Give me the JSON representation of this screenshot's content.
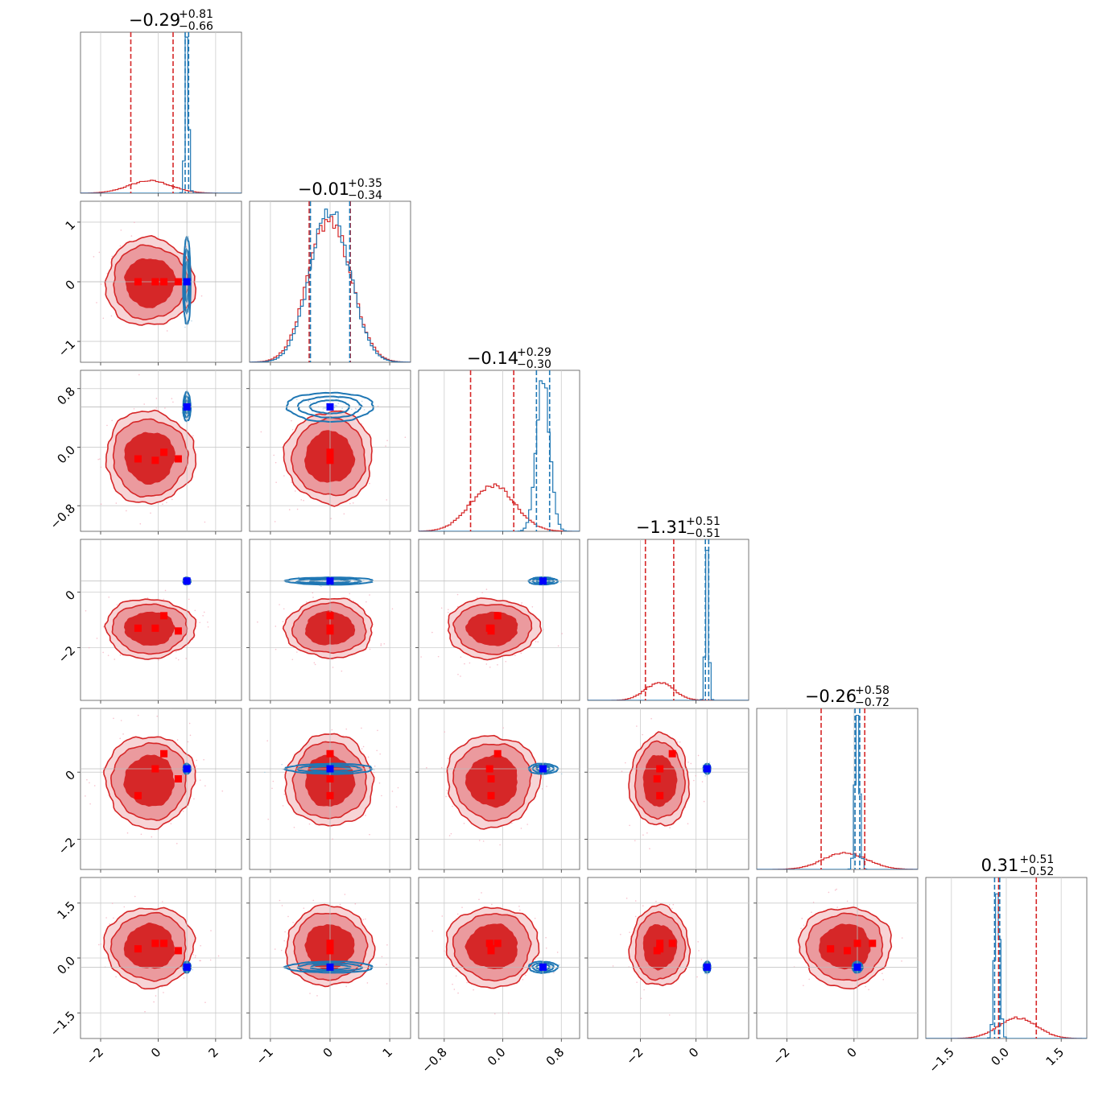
{
  "chart_data": {
    "type": "corner",
    "parameters": 6,
    "grid": true,
    "legend": "none",
    "series_colors": {
      "red_chain": "#d62728",
      "blue_chain": "#1f77b4",
      "red_marker": "#ff0000",
      "blue_marker": "#0000ff"
    },
    "titles": [
      {
        "median": "−0.29",
        "upper": "+0.81",
        "lower": "−0.66"
      },
      {
        "median": "−0.01",
        "upper": "+0.35",
        "lower": "−0.34"
      },
      {
        "median": "−0.14",
        "upper": "+0.29",
        "lower": "−0.30"
      },
      {
        "median": "−1.31",
        "upper": "+0.51",
        "lower": "−0.51"
      },
      {
        "median": "−0.26",
        "upper": "+0.58",
        "lower": "−0.72"
      },
      {
        "median": "0.31",
        "upper": "+0.51",
        "lower": "−0.52"
      }
    ],
    "axes": [
      {
        "range": [
          -2.7,
          2.9
        ],
        "ticks": [
          -2,
          0,
          2
        ],
        "tick_labels": [
          "−2",
          "0",
          "2"
        ]
      },
      {
        "range": [
          -1.35,
          1.35
        ],
        "ticks": [
          -1,
          0,
          1
        ],
        "tick_labels": [
          "−1",
          "0",
          "1"
        ]
      },
      {
        "range": [
          -1.15,
          1.05
        ],
        "ticks": [
          -0.8,
          0.0,
          0.8
        ],
        "tick_labels": [
          "−0.8",
          "0.0",
          "0.8"
        ]
      },
      {
        "range": [
          -3.9,
          1.9
        ],
        "ticks": [
          -2,
          0
        ],
        "tick_labels": [
          "−2",
          "0"
        ]
      },
      {
        "range": [
          -2.9,
          1.9
        ],
        "ticks": [
          -2,
          0
        ],
        "tick_labels": [
          "−2",
          "0"
        ]
      },
      {
        "range": [
          -2.2,
          2.2
        ],
        "ticks": [
          -1.5,
          0.0,
          1.5
        ],
        "tick_labels": [
          "−1.5",
          "0.0",
          "1.5"
        ]
      }
    ],
    "red_chain": {
      "means": [
        -0.29,
        -0.01,
        -0.14,
        -1.31,
        -0.26,
        0.31
      ],
      "sigmas": [
        0.74,
        0.35,
        0.3,
        0.51,
        0.65,
        0.52
      ],
      "quantile_lines": [
        [
          -0.95,
          0.52
        ],
        [
          -0.35,
          0.34
        ],
        [
          -0.44,
          0.15
        ],
        [
          -1.82,
          -0.8
        ],
        [
          -0.98,
          0.32
        ],
        [
          -0.21,
          0.82
        ]
      ]
    },
    "blue_chain": {
      "means": [
        1.0,
        0.0,
        0.55,
        0.4,
        0.1,
        -0.25
      ],
      "sigmas": [
        0.06,
        0.33,
        0.09,
        0.06,
        0.07,
        0.07
      ],
      "quantile_lines": [
        [
          0.94,
          1.06
        ],
        [
          -0.33,
          0.33
        ],
        [
          0.46,
          0.64
        ],
        [
          0.34,
          0.46
        ],
        [
          0.03,
          0.17
        ],
        [
          -0.32,
          -0.18
        ]
      ]
    },
    "red_markers": [
      [
        -0.7,
        0.0,
        -0.16,
        -1.3,
        -0.7,
        0.25
      ],
      [
        -0.1,
        0.0,
        -0.18,
        -1.3,
        0.1,
        0.4
      ],
      [
        0.2,
        0.0,
        -0.07,
        -0.85,
        0.55,
        0.4
      ],
      [
        0.7,
        0.0,
        -0.16,
        -1.4,
        -0.2,
        0.2
      ]
    ],
    "blue_marker": [
      1.0,
      0.0,
      0.55,
      0.4,
      0.1,
      -0.25
    ]
  }
}
